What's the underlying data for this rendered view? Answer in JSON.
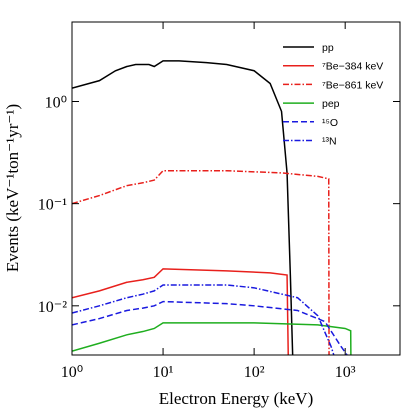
{
  "chart_data": {
    "type": "line",
    "xlabel": "Electron Energy (keV)",
    "ylabel": "Events (keV⁻¹ton⁻¹yr⁻¹)",
    "xscale": "log",
    "yscale": "log",
    "xlim": [
      1,
      4000
    ],
    "ylim": [
      0.0033,
      6
    ],
    "xticks": [
      {
        "value": 1,
        "label": "10⁰"
      },
      {
        "value": 10,
        "label": "10¹"
      },
      {
        "value": 100,
        "label": "10²"
      },
      {
        "value": 1000,
        "label": "10³"
      }
    ],
    "yticks": [
      {
        "value": 0.01,
        "label": "10⁻²"
      },
      {
        "value": 0.1,
        "label": "10⁻¹"
      },
      {
        "value": 1,
        "label": "10⁰"
      }
    ],
    "legend": "upper right",
    "series": [
      {
        "name": "pp",
        "color": "#000000",
        "dash": "solid",
        "x": [
          1,
          2,
          3,
          4,
          5,
          7,
          8,
          10,
          15,
          30,
          50,
          100,
          150,
          200,
          230,
          250,
          265
        ],
        "values": [
          1.35,
          1.6,
          2.0,
          2.2,
          2.3,
          2.3,
          2.2,
          2.5,
          2.5,
          2.4,
          2.3,
          2.0,
          1.5,
          0.8,
          0.2,
          0.02,
          0.0033
        ]
      },
      {
        "name": "⁷Be−384 keV",
        "color": "#e8201c",
        "dash": "solid",
        "x": [
          1,
          2,
          4,
          6,
          8,
          10,
          50,
          150,
          230,
          237
        ],
        "values": [
          0.012,
          0.014,
          0.017,
          0.018,
          0.019,
          0.023,
          0.022,
          0.021,
          0.02,
          0.0033
        ]
      },
      {
        "name": "⁷Be−861 keV",
        "color": "#e8201c",
        "dash": "dashdot",
        "x": [
          1,
          2,
          4,
          6,
          8,
          10,
          50,
          200,
          500,
          660,
          665
        ],
        "values": [
          0.1,
          0.12,
          0.15,
          0.16,
          0.17,
          0.21,
          0.21,
          0.2,
          0.185,
          0.175,
          0.0033
        ]
      },
      {
        "name": "pep",
        "color": "#1fae1f",
        "dash": "solid",
        "x": [
          1,
          2,
          4,
          6,
          8,
          10,
          100,
          500,
          1000,
          1150,
          1155
        ],
        "values": [
          0.0036,
          0.0043,
          0.0052,
          0.0056,
          0.006,
          0.0068,
          0.0068,
          0.0065,
          0.006,
          0.0057,
          0.0033
        ]
      },
      {
        "name": "¹⁵O",
        "color": "#1a1adf",
        "dash": "dashed",
        "x": [
          1,
          2,
          4,
          6,
          8,
          10,
          50,
          100,
          300,
          600,
          900,
          1050
        ],
        "values": [
          0.0065,
          0.0075,
          0.009,
          0.0095,
          0.01,
          0.011,
          0.0105,
          0.01,
          0.009,
          0.007,
          0.004,
          0.0033
        ]
      },
      {
        "name": "¹³N",
        "color": "#1a1adf",
        "dash": "dashdot",
        "x": [
          1,
          2,
          4,
          6,
          8,
          10,
          50,
          100,
          300,
          500,
          700,
          750
        ],
        "values": [
          0.0085,
          0.01,
          0.012,
          0.013,
          0.014,
          0.016,
          0.016,
          0.015,
          0.012,
          0.008,
          0.004,
          0.0033
        ]
      }
    ]
  }
}
